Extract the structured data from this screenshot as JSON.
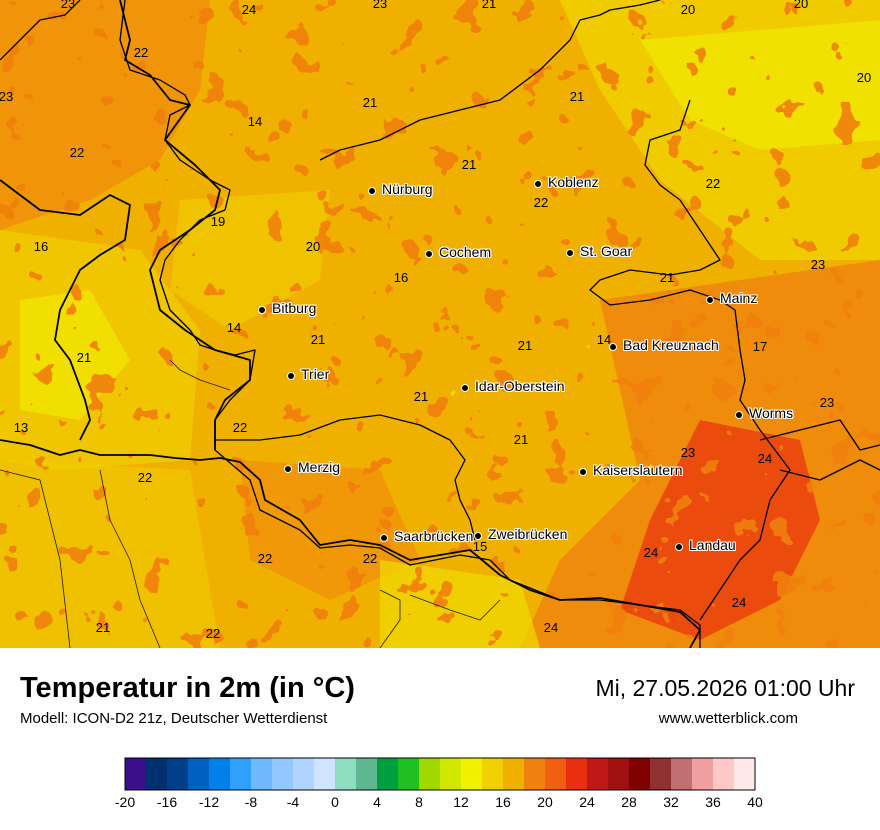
{
  "title": "Temperatur in 2m (in °C)",
  "subtitle": "Modell: ICON-D2 21z, Deutscher Wetterdienst",
  "datetime": "Mi, 27.05.2026 01:00 Uhr",
  "website": "www.wetterblick.com",
  "cities": [
    {
      "name": "Nürburg"
    },
    {
      "name": "Koblenz"
    },
    {
      "name": "Cochem"
    },
    {
      "name": "St. Goar"
    },
    {
      "name": "Mainz"
    },
    {
      "name": "Bitburg"
    },
    {
      "name": "Bad Kreuznach"
    },
    {
      "name": "Trier"
    },
    {
      "name": "Idar-Oberstein"
    },
    {
      "name": "Worms"
    },
    {
      "name": "Merzig"
    },
    {
      "name": "Kaiserslautern"
    },
    {
      "name": "Saarbrücken"
    },
    {
      "name": "Zweibrücken"
    },
    {
      "name": "Landau"
    }
  ],
  "temperature_labels": [
    "23",
    "24",
    "23",
    "21",
    "20",
    "20",
    "22",
    "20",
    "23",
    "21",
    "14",
    "21",
    "22",
    "21",
    "19",
    "16",
    "20",
    "16",
    "22",
    "22",
    "23",
    "14",
    "21",
    "21",
    "14",
    "17",
    "21",
    "13",
    "21",
    "23",
    "22",
    "21",
    "23",
    "24",
    "21",
    "22",
    "22",
    "15",
    "24",
    "22",
    "24",
    "21",
    "22",
    "24"
  ],
  "legend": {
    "colors": [
      "#3b0f8c",
      "#003070",
      "#00408a",
      "#0060c0",
      "#0080e8",
      "#30a0ff",
      "#70b8ff",
      "#90c8ff",
      "#b0d4ff",
      "#d0e4ff",
      "#90dcc0",
      "#60b890",
      "#00a040",
      "#20c020",
      "#a0d800",
      "#d0e800",
      "#f0f000",
      "#f0d000",
      "#f0b000",
      "#f08010",
      "#f06010",
      "#e83010",
      "#c01818",
      "#a01010",
      "#800000",
      "#903030",
      "#c07070",
      "#f0a0a0",
      "#ffc8c8",
      "#ffe8e8"
    ],
    "ticks": [
      "-20",
      "-16",
      "-12",
      "-8",
      "-4",
      "0",
      "4",
      "8",
      "12",
      "16",
      "20",
      "24",
      "28",
      "32",
      "36",
      "40"
    ]
  }
}
